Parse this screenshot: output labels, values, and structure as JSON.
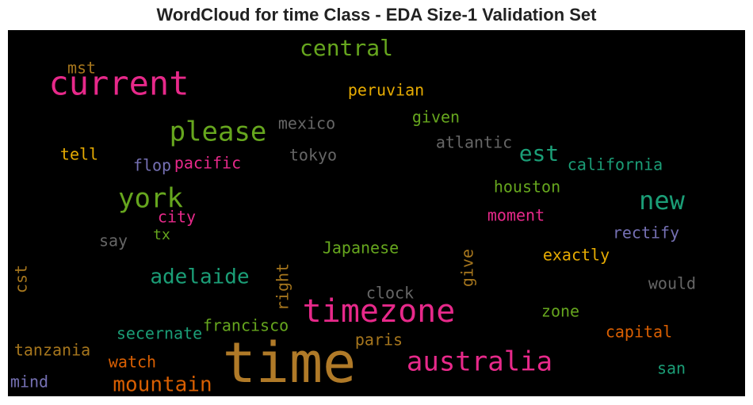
{
  "chart_data": {
    "type": "wordcloud",
    "title": "WordCloud for time Class - EDA Size-1 Validation Set",
    "background": "#000000",
    "words": [
      {
        "text": "time",
        "color": "#b07a28"
      },
      {
        "text": "current",
        "color": "#e7298a"
      },
      {
        "text": "timezone",
        "color": "#e7298a"
      },
      {
        "text": "australia",
        "color": "#e7298a"
      },
      {
        "text": "please",
        "color": "#66a61e"
      },
      {
        "text": "york",
        "color": "#66a61e"
      },
      {
        "text": "central",
        "color": "#66a61e"
      },
      {
        "text": "new",
        "color": "#1b9e77"
      },
      {
        "text": "est",
        "color": "#1b9e77"
      },
      {
        "text": "adelaide",
        "color": "#1b9e77"
      },
      {
        "text": "mountain",
        "color": "#d95f02"
      },
      {
        "text": "mst",
        "color": "#a6761d"
      },
      {
        "text": "peruvian",
        "color": "#e6ab02"
      },
      {
        "text": "mexico",
        "color": "#666666"
      },
      {
        "text": "given",
        "color": "#66a61e"
      },
      {
        "text": "atlantic",
        "color": "#666666"
      },
      {
        "text": "tell",
        "color": "#e6ab02"
      },
      {
        "text": "tokyo",
        "color": "#666666"
      },
      {
        "text": "flop",
        "color": "#7570b3"
      },
      {
        "text": "pacific",
        "color": "#e7298a"
      },
      {
        "text": "california",
        "color": "#1b9e77"
      },
      {
        "text": "houston",
        "color": "#66a61e"
      },
      {
        "text": "city",
        "color": "#e7298a"
      },
      {
        "text": "tx",
        "color": "#66a61e"
      },
      {
        "text": "moment",
        "color": "#e7298a"
      },
      {
        "text": "rectify",
        "color": "#7570b3"
      },
      {
        "text": "say",
        "color": "#666666"
      },
      {
        "text": "Japanese",
        "color": "#66a61e"
      },
      {
        "text": "exactly",
        "color": "#e6ab02"
      },
      {
        "text": "cst",
        "color": "#a6761d"
      },
      {
        "text": "right",
        "color": "#a6761d"
      },
      {
        "text": "give",
        "color": "#a6761d"
      },
      {
        "text": "would",
        "color": "#666666"
      },
      {
        "text": "clock",
        "color": "#666666"
      },
      {
        "text": "zone",
        "color": "#66a61e"
      },
      {
        "text": "secernate",
        "color": "#1b9e77"
      },
      {
        "text": "francisco",
        "color": "#66a61e"
      },
      {
        "text": "capital",
        "color": "#d95f02"
      },
      {
        "text": "tanzania",
        "color": "#a6761d"
      },
      {
        "text": "paris",
        "color": "#a6761d"
      },
      {
        "text": "watch",
        "color": "#d95f02"
      },
      {
        "text": "san",
        "color": "#1b9e77"
      },
      {
        "text": "mind",
        "color": "#7570b3"
      }
    ]
  }
}
